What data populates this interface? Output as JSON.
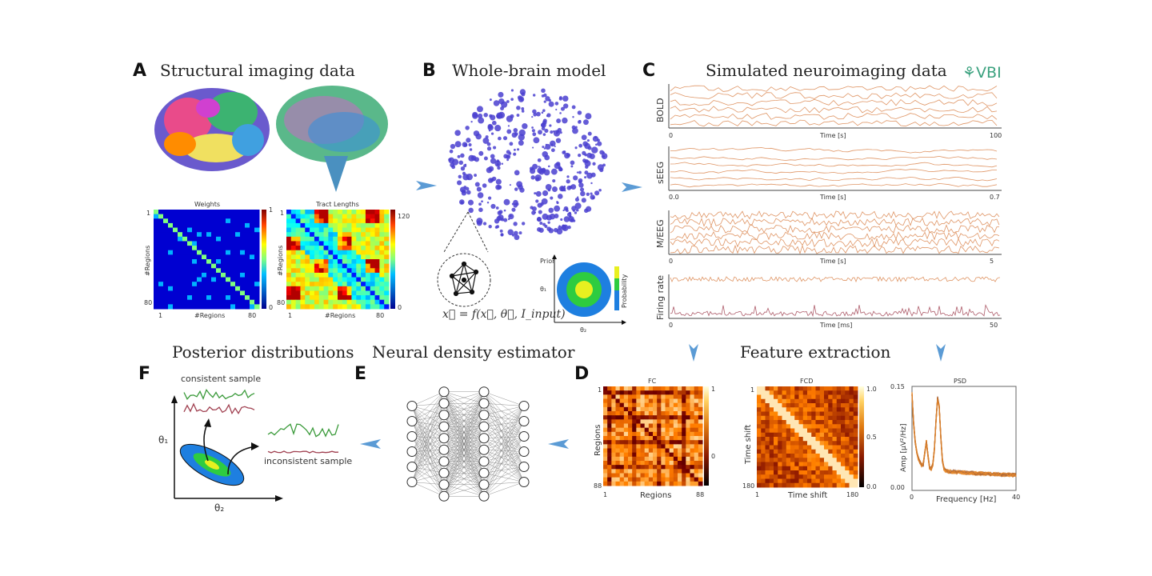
{
  "panels": {
    "A": {
      "letter": "A",
      "title": "Structural imaging data",
      "weights": {
        "title": "Weights",
        "xlabel": "#Regions",
        "ylabel": "#Regions",
        "tick_start": "1",
        "tick_end": "80",
        "cbar_max": "1",
        "cbar_min": "0"
      },
      "tracts": {
        "title": "Tract Lengths",
        "xlabel": "#Regions",
        "ylabel": "#Regions",
        "tick_start": "1",
        "tick_end": "80",
        "cbar_max": "120",
        "cbar_min": "0"
      }
    },
    "B": {
      "letter": "B",
      "title": "Whole-brain model",
      "formula": "x⃗ = f(x⃗, θ⃗, I_input)",
      "prior_label": "Prior",
      "theta1": "θ₁",
      "theta2": "θ₂",
      "prob_label": "Probability"
    },
    "C": {
      "letter": "C",
      "title": "Simulated neuroimaging data",
      "logo": "VBI",
      "traces": [
        {
          "label": "BOLD",
          "xlabel": "Time [s]",
          "x0": "0",
          "x1": "100"
        },
        {
          "label": "sEEG",
          "xlabel": "Time [s]",
          "x0": "0.0",
          "x1": "0.7"
        },
        {
          "label": "M/EEG",
          "xlabel": "Time [s]",
          "x0": "0",
          "x1": "5"
        },
        {
          "label": "Firing rate",
          "xlabel": "Time [ms]",
          "x0": "0",
          "x1": "50"
        }
      ]
    },
    "D": {
      "letter": "D",
      "title": "Feature extraction",
      "fc": {
        "title": "FC",
        "xlabel": "Regions",
        "ylabel": "Regions",
        "t0": "1",
        "t1": "88",
        "cb_top": "1",
        "cb_mid": "0"
      },
      "fcd": {
        "title": "FCD",
        "xlabel": "Time shift",
        "ylabel": "Time shift",
        "t0": "1",
        "t1": "180",
        "cb_top": "1.0",
        "cb_mid": "0.5",
        "cb_bot": "0.0"
      },
      "psd": {
        "title": "PSD",
        "xlabel": "Frequency [Hz]",
        "ylabel": "Amp [μV²/Hz]",
        "x0": "0",
        "x1": "40",
        "y0": "0.00",
        "y1": "0.15"
      }
    },
    "E": {
      "letter": "E",
      "title": "Neural density estimator"
    },
    "F": {
      "letter": "F",
      "title": "Posterior distributions",
      "consistent": "consistent sample",
      "inconsistent": "inconsistent sample",
      "theta1": "θ₁",
      "theta2": "θ₂"
    }
  },
  "colors": {
    "arrow": "#5b9bd5",
    "trace": "#d9824a",
    "dots": "#4a3fd0",
    "logo": "#3aa17e"
  }
}
